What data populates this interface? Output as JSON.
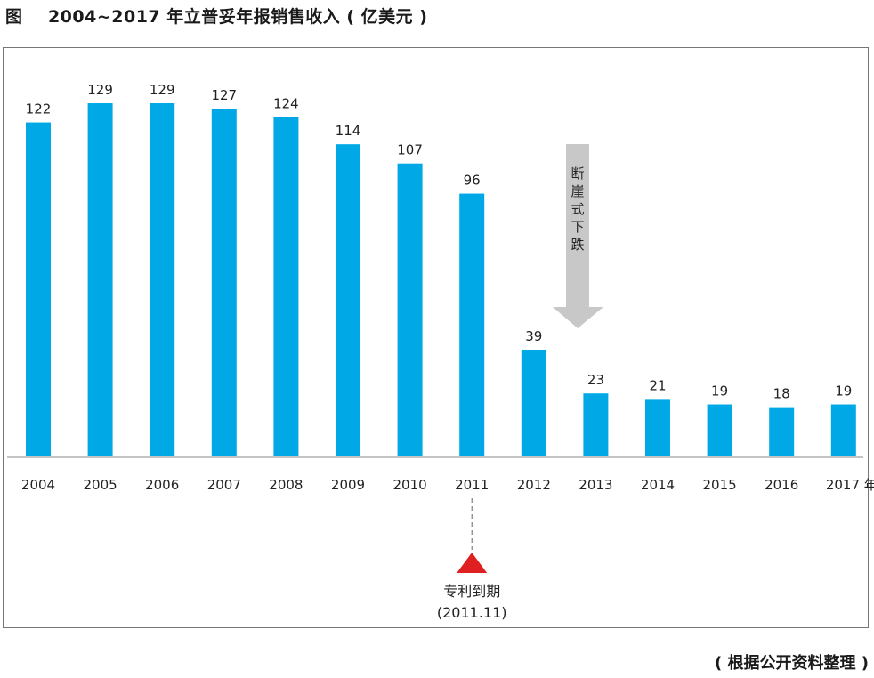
{
  "title": "图    2004~2017 年立普妥年报销售收入 ( 亿美元 )",
  "source_note": "( 根据公开资料整理 )",
  "colors": {
    "bar": "#00a9e6",
    "arrow": "#c8c8c8",
    "marker": "#e02020",
    "axis": "#888888",
    "text": "#222222"
  },
  "chart_data": {
    "type": "bar",
    "categories": [
      "2004",
      "2005",
      "2006",
      "2007",
      "2008",
      "2009",
      "2010",
      "2011",
      "2012",
      "2013",
      "2014",
      "2015",
      "2016",
      "2017 年"
    ],
    "values": [
      122,
      129,
      129,
      127,
      124,
      114,
      107,
      96,
      39,
      23,
      21,
      19,
      18,
      19
    ],
    "data_labels": [
      "122",
      "129",
      "129",
      "127",
      "124",
      "114",
      "107",
      "96",
      "39",
      "23",
      "21",
      "19",
      "18",
      "19"
    ],
    "title": "2004~2017 年立普妥年报销售收入 ( 亿美元 )",
    "xlabel": "",
    "ylabel": "",
    "ylim": [
      0,
      129
    ],
    "grid": false,
    "annotations": [
      {
        "id": "drop-arrow",
        "text": "断崖式下跌",
        "between": [
          "2012",
          "2013"
        ]
      },
      {
        "id": "patent-expiry",
        "line1": "专利到期",
        "line2": "(2011.11)",
        "category": "2011"
      }
    ]
  }
}
